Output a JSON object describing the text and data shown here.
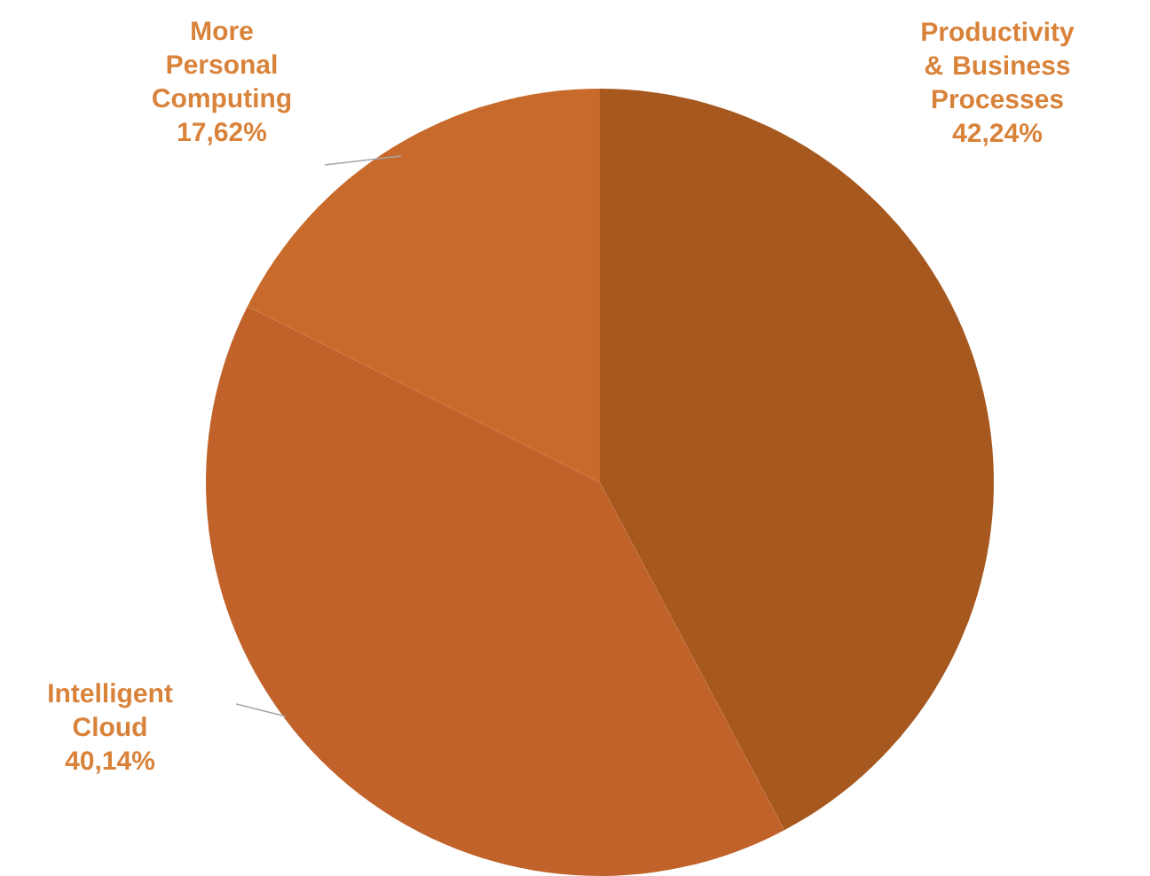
{
  "chart_data": {
    "type": "pie",
    "categories": [
      "Productivity & Business Processes",
      "Intelligent Cloud",
      "More Personal Computing"
    ],
    "values": [
      42.24,
      40.14,
      17.62
    ],
    "value_labels": [
      "42,24%",
      "40,14%",
      "17,62%"
    ],
    "colors": [
      "#a6581f",
      "#c0622a",
      "#c86a2b"
    ]
  }
}
